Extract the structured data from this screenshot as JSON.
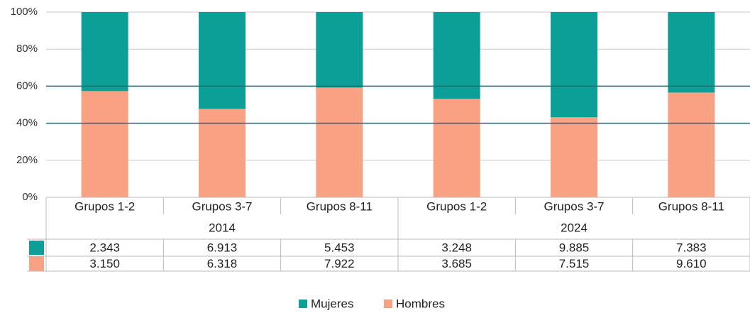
{
  "chart_data": {
    "type": "bar",
    "stack": "percent",
    "categories": [
      "Grupos 1-2",
      "Grupos 3-7",
      "Grupos 8-11",
      "Grupos 1-2",
      "Grupos 3-7",
      "Grupos 8-11"
    ],
    "groups": [
      "2014",
      "2024"
    ],
    "series": [
      {
        "name": "Mujeres",
        "color": "#0b9f97",
        "values": [
          2343,
          6913,
          5453,
          3248,
          9885,
          7383
        ],
        "value_labels": [
          "2.343",
          "6.913",
          "5.453",
          "3.248",
          "9.885",
          "7.383"
        ]
      },
      {
        "name": "Hombres",
        "color": "#f8a283",
        "values": [
          3150,
          6318,
          7922,
          3685,
          7515,
          9610
        ],
        "value_labels": [
          "3.150",
          "6.318",
          "7.922",
          "3.685",
          "7.515",
          "9.610"
        ]
      }
    ],
    "ylim": [
      0,
      100
    ],
    "yticks": [
      {
        "value": 0,
        "label": "0%"
      },
      {
        "value": 20,
        "label": "20%"
      },
      {
        "value": 40,
        "label": "40%"
      },
      {
        "value": 60,
        "label": "60%"
      },
      {
        "value": 80,
        "label": "80%"
      },
      {
        "value": 100,
        "label": "100%"
      }
    ],
    "reference_lines": [
      40,
      60
    ],
    "reference_color": "#1f6e6c",
    "grid": true,
    "legend": "bottom"
  }
}
